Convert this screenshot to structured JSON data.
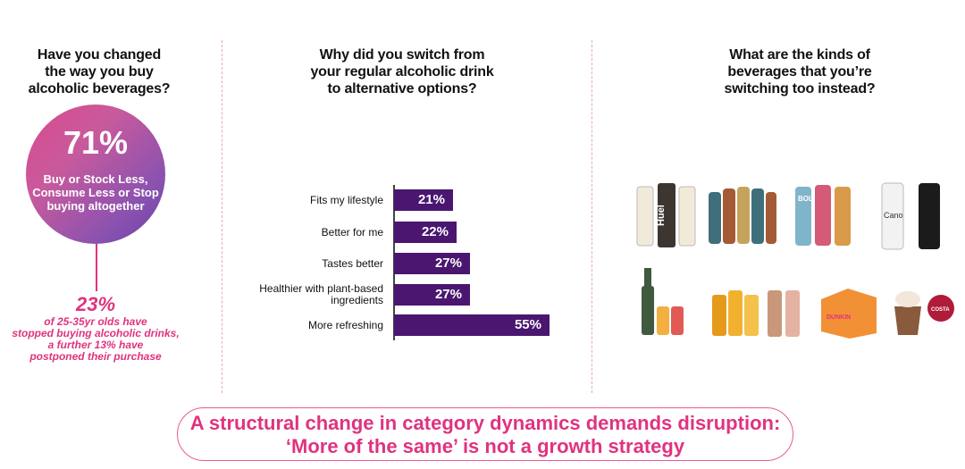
{
  "columns": {
    "left": {
      "heading": [
        "Have you changed",
        "the way you buy",
        "alcoholic beverages?"
      ],
      "big_stat": "71%",
      "big_stat_text": "Buy or Stock Less, Consume Less or Stop buying altogether",
      "stat2": "23%",
      "stat2_text": [
        "of 25-35yr olds have",
        "stopped buying alcoholic drinks,",
        "a further 13% have",
        "postponed their purchase"
      ]
    },
    "middle": {
      "heading": [
        "Why did you switch from",
        "your regular alcoholic drink",
        "to alternative options?"
      ]
    },
    "right": {
      "heading": [
        "What are the kinds of",
        "beverages that you’re",
        "switching too instead?"
      ],
      "products": [
        {
          "name": "Huel drinks",
          "brand_text": "Huel",
          "colors": [
            "#f1ead8",
            "#3c3530",
            "#f1ead8"
          ]
        },
        {
          "name": "Iced coffee bottles",
          "brand_text": "",
          "colors": [
            "#3f6f7a",
            "#a45a35",
            "#c6a35c"
          ]
        },
        {
          "name": "BOL power shakes",
          "brand_text": "BOL",
          "colors": [
            "#7fb5c8",
            "#d45a77",
            "#d99a4a"
          ]
        },
        {
          "name": "Cano water cans",
          "brand_text": "Cano",
          "colors": [
            "#f2f2f2",
            "#1b1b1b"
          ]
        },
        {
          "name": "Sparkling wine and cans",
          "brand_text": "",
          "colors": [
            "#3f5a3f",
            "#f3b040",
            "#e25a55"
          ]
        },
        {
          "name": "Juice shots",
          "brand_text": "",
          "colors": [
            "#e69a1b",
            "#f1b12f",
            "#f4c14a"
          ]
        },
        {
          "name": "Spiced drinks cans",
          "brand_text": "",
          "colors": [
            "#c9977a",
            "#e4b2a0"
          ]
        },
        {
          "name": "Dunkin box",
          "brand_text": "DUNKIN",
          "colors": [
            "#f29036",
            "#e0337f"
          ]
        },
        {
          "name": "Costa frappe",
          "brand_text": "COSTA",
          "colors": [
            "#8a5a3c",
            "#b01b3a"
          ]
        }
      ]
    }
  },
  "chart_data": {
    "type": "bar",
    "orientation": "horizontal",
    "title": "Why did you switch from your regular alcoholic drink to alternative options?",
    "categories": [
      "Fits my lifestyle",
      "Better for me",
      "Tastes better",
      "Healthier with plant-based ingredients",
      "More refreshing"
    ],
    "category_lines": [
      [
        "Fits my lifestyle"
      ],
      [
        "Better for me"
      ],
      [
        "Tastes better"
      ],
      [
        "Healthier with plant-based",
        "ingredients"
      ],
      [
        "More refreshing"
      ]
    ],
    "values": [
      21,
      22,
      27,
      27,
      55
    ],
    "value_labels": [
      "21%",
      "22%",
      "27%",
      "27%",
      "55%"
    ],
    "xlim": [
      0,
      100
    ],
    "bar_color": "#4a1670"
  },
  "conclusion": [
    "A structural change in category dynamics demands disruption:",
    "‘More of the same’ is not a growth strategy"
  ]
}
